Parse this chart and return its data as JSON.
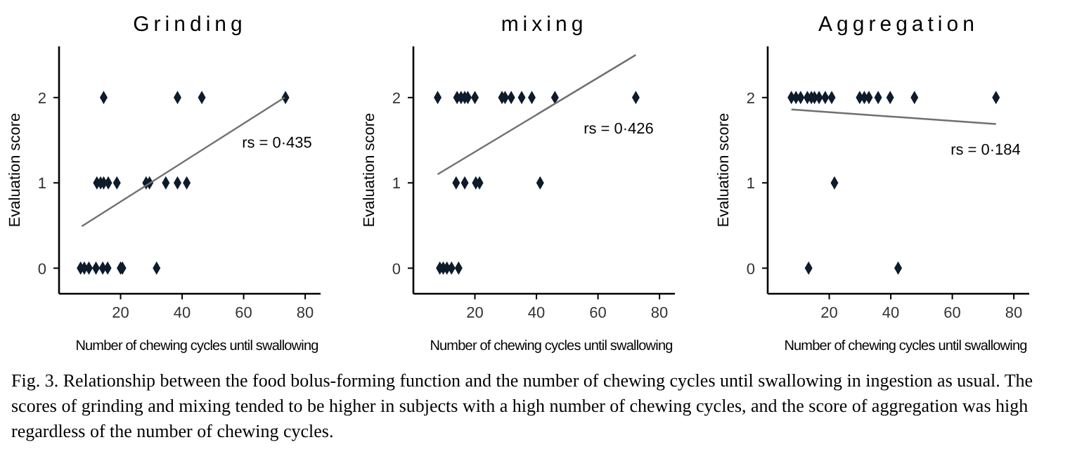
{
  "chart_data": [
    {
      "type": "scatter",
      "title": "Grinding",
      "xlabel": "Number of chewing cycles until swallowing",
      "ylabel": "Evaluation score",
      "xlim": [
        0,
        85
      ],
      "ylim": [
        -0.3,
        2.6
      ],
      "xticks": [
        20,
        40,
        60,
        80
      ],
      "yticks": [
        0,
        1,
        2
      ],
      "grid": false,
      "series": [
        {
          "color": "#0d1b2a",
          "marker": "diamond",
          "x": [
            14.5,
            38.5,
            46.4,
            73.6,
            12.3,
            13.5,
            14.5,
            16,
            18.8,
            28.3,
            29.4,
            34.7,
            38.5,
            41.5,
            7,
            8.2,
            9.7,
            12,
            14.2,
            15.8,
            20,
            20.6,
            31.7
          ],
          "values": [
            2,
            2,
            2,
            2,
            1,
            1,
            1,
            1,
            1,
            1,
            1,
            1,
            1,
            1,
            0,
            0,
            0,
            0,
            0,
            0,
            0,
            0,
            0
          ]
        },
        {
          "type": "line",
          "marker": "none",
          "color": "#707070",
          "x": [
            7.4,
            73.3
          ],
          "values": [
            0.49,
            2.0
          ]
        }
      ],
      "annotations": [
        "rs = 0·435"
      ]
    },
    {
      "type": "scatter",
      "title": "mixing",
      "xlabel": "Number of chewing cycles until swallowing",
      "ylabel": "Evaluation score",
      "xlim": [
        0,
        85
      ],
      "ylim": [
        -0.3,
        2.6
      ],
      "xticks": [
        20,
        40,
        60,
        80
      ],
      "yticks": [
        0,
        1,
        2
      ],
      "grid": false,
      "series": [
        {
          "color": "#0d1b2a",
          "marker": "diamond",
          "x": [
            7.9,
            14.2,
            15.5,
            16.7,
            17.7,
            20,
            28.8,
            29.8,
            31.8,
            35.2,
            38.5,
            46,
            72.3,
            13.9,
            16.7,
            20.3,
            21.5,
            41.2,
            8.6,
            9.7,
            10.9,
            12.4,
            14.7
          ],
          "values": [
            2,
            2,
            2,
            2,
            2,
            2,
            2,
            2,
            2,
            2,
            2,
            2,
            2,
            1,
            1,
            1,
            1,
            1,
            0,
            0,
            0,
            0,
            0
          ]
        },
        {
          "type": "line",
          "marker": "none",
          "color": "#707070",
          "x": [
            7.9,
            72.3
          ],
          "values": [
            1.1,
            2.5
          ]
        }
      ],
      "annotations": [
        "rs = 0·426"
      ]
    },
    {
      "type": "scatter",
      "title": "Aggregation",
      "xlabel": "Number of chewing cycles until swallowing",
      "ylabel": "Evaluation score",
      "xlim": [
        0,
        85
      ],
      "ylim": [
        -0.3,
        2.6
      ],
      "xticks": [
        20,
        40,
        60,
        80
      ],
      "yticks": [
        0,
        1,
        2
      ],
      "grid": false,
      "series": [
        {
          "color": "#0d1b2a",
          "marker": "diamond",
          "x": [
            7.7,
            9.2,
            10.7,
            12.9,
            14.2,
            15.2,
            16.7,
            18.7,
            20.8,
            29.9,
            31.4,
            32.9,
            35.9,
            39.8,
            47.7,
            74.2,
            21.7,
            13.3,
            42.4
          ],
          "values": [
            2,
            2,
            2,
            2,
            2,
            2,
            2,
            2,
            2,
            2,
            2,
            2,
            2,
            2,
            2,
            2,
            1,
            0,
            0
          ]
        },
        {
          "type": "line",
          "marker": "none",
          "color": "#707070",
          "x": [
            7.7,
            74.2
          ],
          "values": [
            1.86,
            1.69
          ]
        }
      ],
      "annotations": [
        "rs = 0·184",
        "Fig. 3. Relationship between the food bolus-forming function and the number of chewing cycles until swallowing in ingestion as usual. The scores of grinding and mixing tended to be higher in subjects with a high number of chewing cycles, and the score of aggregation was high regardless of the number of chewing cycles."
      ]
    }
  ]
}
